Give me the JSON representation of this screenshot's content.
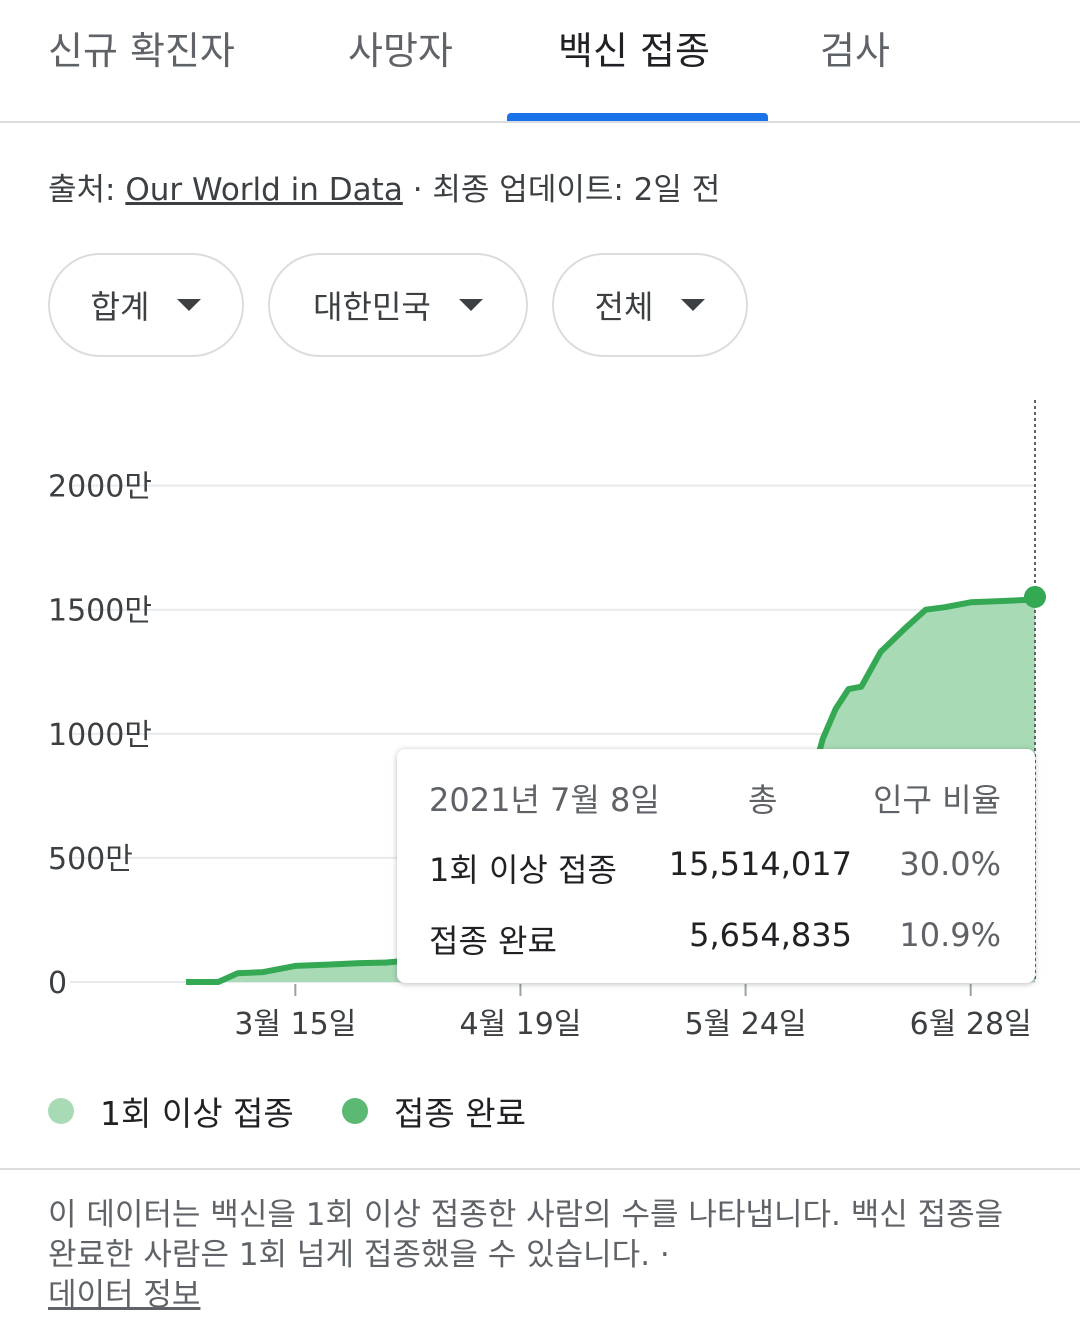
{
  "tabs": [
    {
      "label": "신규 확진자",
      "active": false
    },
    {
      "label": "사망자",
      "active": false
    },
    {
      "label": "백신 접종",
      "active": true
    },
    {
      "label": "검사",
      "active": false
    }
  ],
  "source": {
    "prefix": "출처:",
    "link_text": "Our World in Data",
    "separator": "·",
    "updated": "최종 업데이트: 2일 전"
  },
  "filters": [
    {
      "label": "합계",
      "icon": "caret-down-icon"
    },
    {
      "label": "대한민국",
      "icon": "caret-down-icon"
    },
    {
      "label": "전체",
      "icon": "caret-down-icon"
    }
  ],
  "tooltip": {
    "date": "2021년 7월 8일",
    "col_total": "총",
    "col_ratio": "인구 비율",
    "rows": [
      {
        "label": "1회 이상 접종",
        "total": "15,514,017",
        "ratio": "30.0%"
      },
      {
        "label": "접종 완료",
        "total": "5,654,835",
        "ratio": "10.9%"
      }
    ]
  },
  "legend": [
    {
      "label": "1회 이상 접종",
      "color": "#a8dab5"
    },
    {
      "label": "접종 완료",
      "color": "#5bb974"
    }
  ],
  "footer": {
    "note": "이 데이터는 백신을 1회 이상 접종한 사람의 수를 나타냅니다. 백신 접종을 완료한 사람은 1회 넘게 접종했을 수 있습니다.",
    "separator": "·",
    "link_text": "데이터 정보"
  },
  "colors": {
    "line": "#34a853",
    "area": "#a8dab5",
    "accent": "#1a73e8"
  },
  "chart_data": {
    "type": "area",
    "ytick_labels": [
      "0",
      "500만",
      "1000만",
      "1500만",
      "2000만"
    ],
    "yticks": [
      0,
      5000000,
      10000000,
      15000000,
      20000000
    ],
    "ylim": [
      0,
      22000000
    ],
    "xlim": [
      "2021-02-26",
      "2021-07-08"
    ],
    "xtick_labels": [
      "3월 15일",
      "4월 19일",
      "5월 24일",
      "6월 28일"
    ],
    "xticks": [
      "2021-03-15",
      "2021-04-19",
      "2021-05-24",
      "2021-06-28"
    ],
    "grid": true,
    "legend_position": "bottom",
    "series": [
      {
        "name": "1회 이상 접종",
        "x": [
          "2021-02-26",
          "2021-03-03",
          "2021-03-06",
          "2021-03-10",
          "2021-03-15",
          "2021-03-20",
          "2021-03-25",
          "2021-03-29",
          "2021-04-03",
          "2021-04-08",
          "2021-04-13",
          "2021-04-19",
          "2021-05-24",
          "2021-05-30",
          "2021-06-02",
          "2021-06-05",
          "2021-06-07",
          "2021-06-09",
          "2021-06-11",
          "2021-06-14",
          "2021-06-18",
          "2021-06-21",
          "2021-06-24",
          "2021-06-28",
          "2021-07-03",
          "2021-07-07",
          "2021-07-08"
        ],
        "values": [
          0,
          0,
          350000,
          400000,
          650000,
          700000,
          760000,
          780000,
          900000,
          950000,
          1150000,
          1300000,
          3500000,
          5000000,
          7000000,
          9800000,
          11000000,
          11800000,
          11900000,
          13300000,
          14300000,
          15000000,
          15100000,
          15300000,
          15350000,
          15400000,
          15514017
        ]
      },
      {
        "name": "접종 완료",
        "values_final": 5654835
      }
    ]
  }
}
